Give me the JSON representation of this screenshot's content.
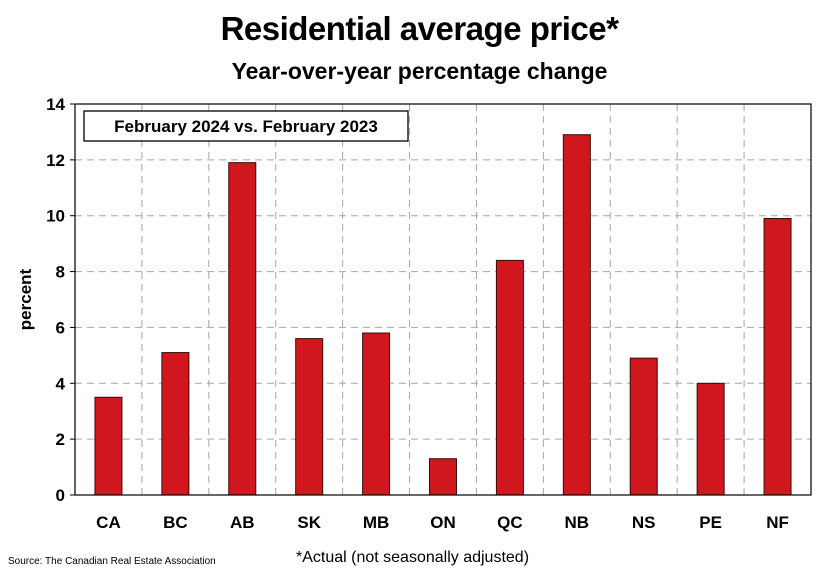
{
  "chart_data": {
    "type": "bar",
    "title": "Residential average price*",
    "subtitle": "Year-over-year percentage change",
    "annotation": "February 2024 vs. February 2023",
    "ylabel": "percent",
    "xlabel": "",
    "categories": [
      "CA",
      "BC",
      "AB",
      "SK",
      "MB",
      "ON",
      "QC",
      "NB",
      "NS",
      "PE",
      "NF"
    ],
    "values": [
      3.5,
      5.1,
      11.9,
      5.6,
      5.8,
      1.3,
      8.4,
      12.9,
      4.9,
      4.0,
      9.9
    ],
    "ylim": [
      0,
      14
    ],
    "yticks": [
      0,
      2,
      4,
      6,
      8,
      10,
      12,
      14
    ],
    "grid": true,
    "bar_color": "#d0171e"
  },
  "footer": {
    "source": "Source: The Canadian Real Estate Association",
    "footnote": "*Actual (not seasonally adjusted)"
  }
}
